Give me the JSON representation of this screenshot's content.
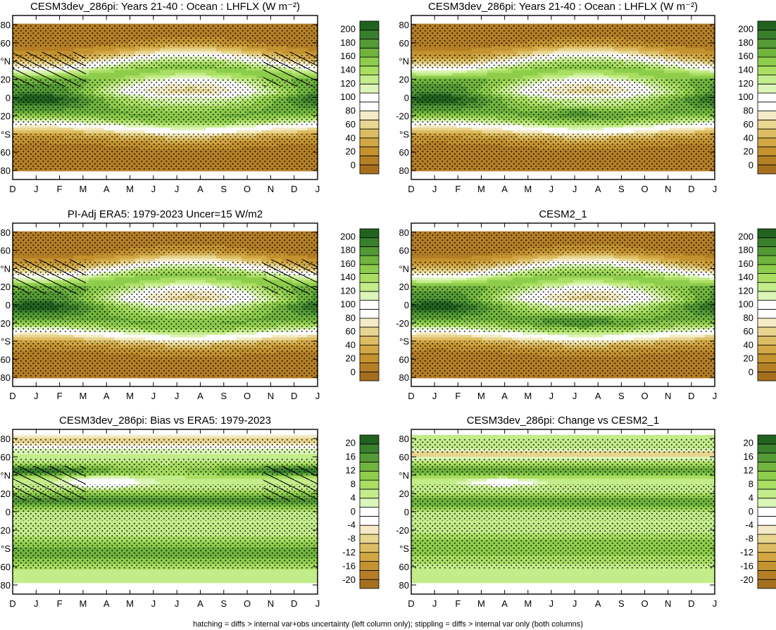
{
  "page": {
    "footer_note": "hatching = diffs > internal var+obs uncertainty (left column only); stippling = diffs > internal var only (both columns)"
  },
  "month_ticks": [
    "D",
    "J",
    "F",
    "M",
    "A",
    "M",
    "J",
    "J",
    "A",
    "S",
    "O",
    "N",
    "D",
    "J"
  ],
  "lat_ticks": [
    "80",
    "60",
    "°N",
    "20",
    "0",
    "-20",
    "°S",
    "60",
    "80"
  ],
  "colors": {
    "brown_to_green": [
      "#a66f1e",
      "#b57f26",
      "#c49330",
      "#d2a744",
      "#ddbd63",
      "#e8d590",
      "#f4ebc6",
      "#ffffff",
      "#ffffff",
      "#dcf5b8",
      "#c3ec8a",
      "#a9de62",
      "#8ecd4c",
      "#70b43e",
      "#549a35",
      "#3a7f2c",
      "#22621f"
    ]
  },
  "chart_data": [
    {
      "type": "heatmap",
      "title": "CESM3dev_286pi: Years 21-40 : Ocean : LHFLX (W m⁻²)",
      "x": [
        "D",
        "J",
        "F",
        "M",
        "A",
        "M",
        "J",
        "J",
        "A",
        "S",
        "O",
        "N",
        "D",
        "J"
      ],
      "y_ticks": [
        "80",
        "60",
        "°N",
        "20",
        "0",
        "-20",
        "°S",
        "60",
        "80"
      ],
      "colorbar_levels": [
        "0",
        "20",
        "40",
        "60",
        "80",
        "100",
        "120",
        "140",
        "160",
        "180",
        "200"
      ],
      "colorbar_range": [
        -10,
        210
      ],
      "overlay": "stippling and hatching",
      "field": "climatology"
    },
    {
      "type": "heatmap",
      "title": "CESM3dev_286pi: Years 21-40 : Ocean : LHFLX (W m⁻²)",
      "x": [
        "D",
        "J",
        "F",
        "M",
        "A",
        "M",
        "J",
        "J",
        "A",
        "S",
        "O",
        "N",
        "D",
        "J"
      ],
      "y_ticks": [
        "80",
        "60",
        "°N",
        "20",
        "0",
        "-20",
        "°S",
        "60",
        "80"
      ],
      "colorbar_levels": [
        "0",
        "20",
        "40",
        "60",
        "80",
        "100",
        "120",
        "140",
        "160",
        "180",
        "200"
      ],
      "colorbar_range": [
        -10,
        210
      ],
      "overlay": "stippling",
      "field": "climatology"
    },
    {
      "type": "heatmap",
      "title": "PI-Adj ERA5: 1979-2023 Uncer=15 W/m2",
      "x": [
        "D",
        "J",
        "F",
        "M",
        "A",
        "M",
        "J",
        "J",
        "A",
        "S",
        "O",
        "N",
        "D",
        "J"
      ],
      "y_ticks": [
        "80",
        "60",
        "°N",
        "20",
        "0",
        "-20",
        "°S",
        "60",
        "80"
      ],
      "colorbar_levels": [
        "0",
        "20",
        "40",
        "60",
        "80",
        "100",
        "120",
        "140",
        "160",
        "180",
        "200"
      ],
      "colorbar_range": [
        -10,
        210
      ],
      "overlay": "stippling and hatching",
      "field": "climatology"
    },
    {
      "type": "heatmap",
      "title": "CESM2_1",
      "x": [
        "D",
        "J",
        "F",
        "M",
        "A",
        "M",
        "J",
        "J",
        "A",
        "S",
        "O",
        "N",
        "D",
        "J"
      ],
      "y_ticks": [
        "80",
        "60",
        "°N",
        "20",
        "0",
        "-20",
        "°S",
        "60",
        "80"
      ],
      "colorbar_levels": [
        "0",
        "20",
        "40",
        "60",
        "80",
        "100",
        "120",
        "140",
        "160",
        "180",
        "200"
      ],
      "colorbar_range": [
        -10,
        210
      ],
      "overlay": "stippling",
      "field": "climatology"
    },
    {
      "type": "heatmap",
      "title": "CESM3dev_286pi: Bias vs ERA5: 1979-2023",
      "x": [
        "D",
        "J",
        "F",
        "M",
        "A",
        "M",
        "J",
        "J",
        "A",
        "S",
        "O",
        "N",
        "D",
        "J"
      ],
      "y_ticks": [
        "80",
        "60",
        "°N",
        "20",
        "0",
        "-20",
        "°S",
        "60",
        "80"
      ],
      "colorbar_levels": [
        "-20",
        "-16",
        "-12",
        "-8",
        "-4",
        "0",
        "4",
        "8",
        "12",
        "16",
        "20"
      ],
      "colorbar_range": [
        -22,
        22
      ],
      "overlay": "stippling and hatching",
      "field": "difference"
    },
    {
      "type": "heatmap",
      "title": "CESM3dev_286pi: Change vs CESM2_1",
      "x": [
        "D",
        "J",
        "F",
        "M",
        "A",
        "M",
        "J",
        "J",
        "A",
        "S",
        "O",
        "N",
        "D",
        "J"
      ],
      "y_ticks": [
        "80",
        "60",
        "°N",
        "20",
        "0",
        "-20",
        "°S",
        "60",
        "80"
      ],
      "colorbar_levels": [
        "-20",
        "-16",
        "-12",
        "-8",
        "-4",
        "0",
        "4",
        "8",
        "12",
        "16",
        "20"
      ],
      "colorbar_range": [
        -22,
        22
      ],
      "overlay": "stippling",
      "field": "difference"
    }
  ]
}
